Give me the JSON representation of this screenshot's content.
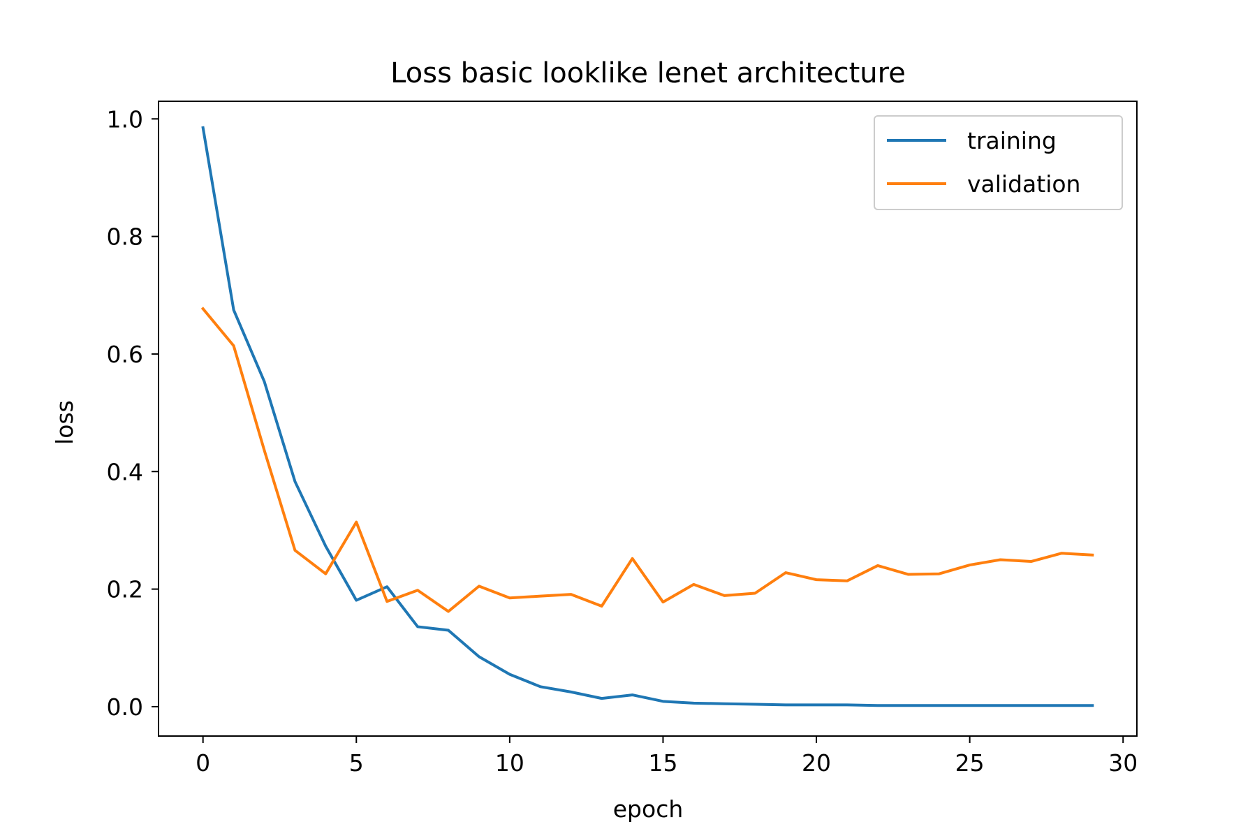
{
  "chart_data": {
    "type": "line",
    "title": "Loss basic looklike lenet architecture",
    "xlabel": "epoch",
    "ylabel": "loss",
    "xlim": [
      -1.45,
      30.45
    ],
    "ylim": [
      -0.05,
      1.03
    ],
    "xticks": [
      0,
      5,
      10,
      15,
      20,
      25,
      30
    ],
    "xtick_labels": [
      "0",
      "5",
      "10",
      "15",
      "20",
      "25",
      "30"
    ],
    "yticks": [
      0.0,
      0.2,
      0.4,
      0.6,
      0.8,
      1.0
    ],
    "ytick_labels": [
      "0.0",
      "0.2",
      "0.4",
      "0.6",
      "0.8",
      "1.0"
    ],
    "grid": false,
    "legend_position": "top-right",
    "x": [
      0,
      1,
      2,
      3,
      4,
      5,
      6,
      7,
      8,
      9,
      10,
      11,
      12,
      13,
      14,
      15,
      16,
      17,
      18,
      19,
      20,
      21,
      22,
      23,
      24,
      25,
      26,
      27,
      28,
      29
    ],
    "series": [
      {
        "name": "training",
        "color": "#1f77b4",
        "values": [
          0.985,
          0.675,
          0.553,
          0.383,
          0.273,
          0.181,
          0.204,
          0.136,
          0.13,
          0.085,
          0.055,
          0.034,
          0.025,
          0.014,
          0.02,
          0.009,
          0.006,
          0.005,
          0.004,
          0.003,
          0.003,
          0.003,
          0.002,
          0.002,
          0.002,
          0.002,
          0.002,
          0.002,
          0.002,
          0.002
        ]
      },
      {
        "name": "validation",
        "color": "#ff7f0e",
        "values": [
          0.677,
          0.614,
          0.436,
          0.266,
          0.226,
          0.314,
          0.179,
          0.198,
          0.162,
          0.205,
          0.185,
          0.188,
          0.191,
          0.171,
          0.252,
          0.178,
          0.208,
          0.189,
          0.193,
          0.228,
          0.216,
          0.214,
          0.24,
          0.225,
          0.226,
          0.241,
          0.25,
          0.247,
          0.261,
          0.258
        ]
      }
    ]
  }
}
